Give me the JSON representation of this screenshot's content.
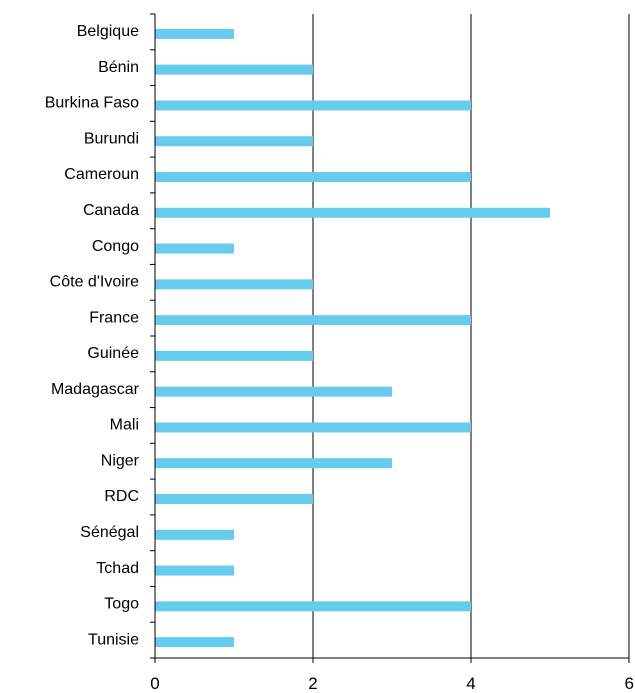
{
  "chart_data": {
    "type": "bar",
    "orientation": "horizontal",
    "categories": [
      "Belgique",
      "Bénin",
      "Burkina Faso",
      "Burundi",
      "Cameroun",
      "Canada",
      "Congo",
      "Côte d'Ivoire",
      "France",
      "Guinée",
      "Madagascar",
      "Mali",
      "Niger",
      "RDC",
      "Sénégal",
      "Tchad",
      "Togo",
      "Tunisie"
    ],
    "values": [
      1,
      2,
      4,
      2,
      4,
      5,
      1,
      2,
      4,
      2,
      3,
      4,
      3,
      2,
      1,
      1,
      4,
      1
    ],
    "xlim": [
      0,
      6
    ],
    "xticks": [
      "0",
      "2",
      "4",
      "6"
    ],
    "grid": "vertical",
    "title": "",
    "xlabel": "",
    "ylabel": "",
    "bar_color": "#66ccee"
  }
}
